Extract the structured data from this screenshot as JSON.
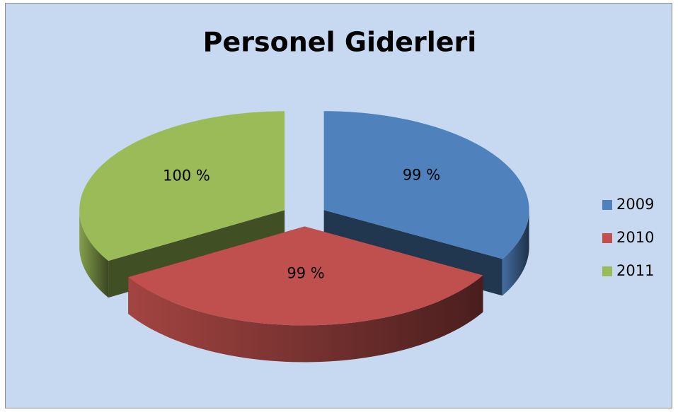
{
  "chart_data": {
    "type": "pie",
    "title": "Personel Giderleri",
    "categories": [
      "2009",
      "2010",
      "2011"
    ],
    "values": [
      99,
      99,
      100
    ],
    "value_labels": [
      "99 %",
      "99 %",
      "100 %"
    ],
    "colors": [
      "#4f81bd",
      "#c0504d",
      "#9bbb59"
    ],
    "legend": "right"
  }
}
